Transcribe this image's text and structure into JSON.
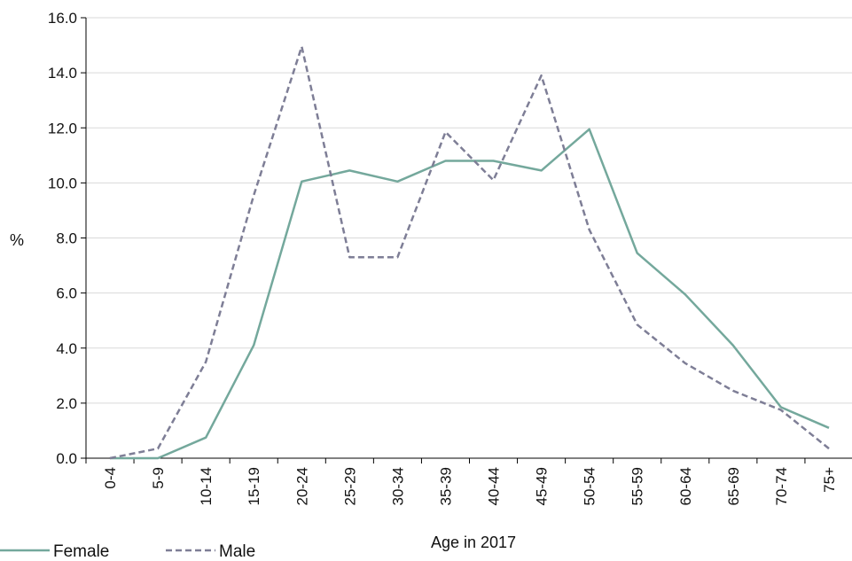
{
  "chart_data": {
    "type": "line",
    "categories": [
      "0-4",
      "5-9",
      "10-14",
      "15-19",
      "20-24",
      "25-29",
      "30-34",
      "35-39",
      "40-44",
      "45-49",
      "50-54",
      "55-59",
      "60-64",
      "65-69",
      "70-74",
      "75+"
    ],
    "series": [
      {
        "name": "Female",
        "color": "#74a89c",
        "dash": "solid",
        "values": [
          0.0,
          0.0,
          0.75,
          4.1,
          10.05,
          10.45,
          10.05,
          10.8,
          10.8,
          10.45,
          11.95,
          7.45,
          5.95,
          4.1,
          1.85,
          1.1
        ]
      },
      {
        "name": "Male",
        "color": "#7e7e96",
        "dash": "dashed",
        "values": [
          0.0,
          0.35,
          3.5,
          9.55,
          14.95,
          7.3,
          7.3,
          11.85,
          10.1,
          13.9,
          8.3,
          4.85,
          3.45,
          2.45,
          1.75,
          0.35
        ]
      }
    ],
    "xlabel": "Age in 2017",
    "ylabel": "%",
    "ylim": [
      0,
      16
    ],
    "yticks": [
      "0.0",
      "2.0",
      "4.0",
      "6.0",
      "8.0",
      "10.0",
      "12.0",
      "14.0",
      "16.0"
    ],
    "grid": "horizontal",
    "legend": "bottom-left"
  }
}
